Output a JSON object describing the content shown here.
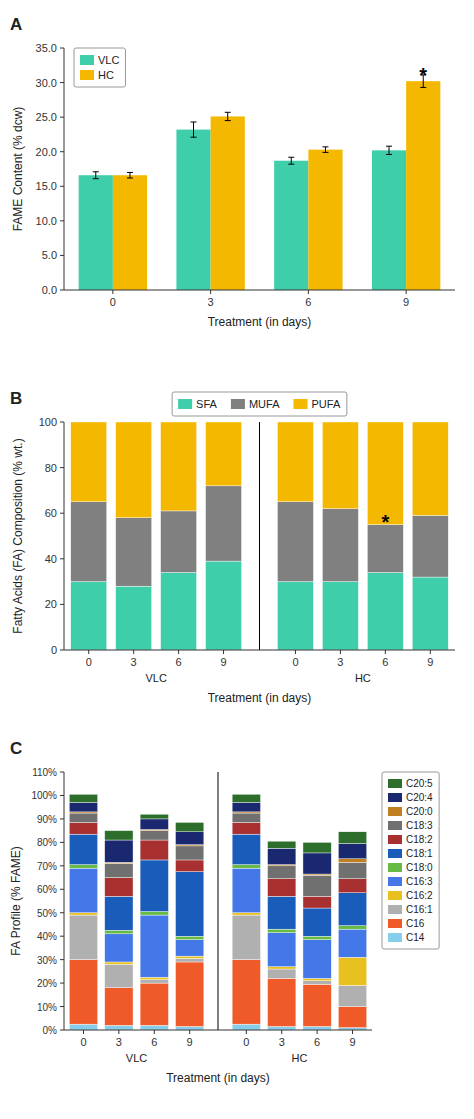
{
  "chart_data": [
    {
      "type": "bar",
      "title": "A",
      "x_label": "Treatment (in days)",
      "y_label": "FAME Content (% dcw)",
      "categories": [
        "0",
        "3",
        "6",
        "9"
      ],
      "series": [
        {
          "name": "VLC",
          "color": "#3ecfaa",
          "values": [
            16.6,
            23.2,
            18.7,
            20.2
          ],
          "errors": [
            0.5,
            1.1,
            0.5,
            0.6
          ]
        },
        {
          "name": "HC",
          "color": "#f5b800",
          "values": [
            16.6,
            25.1,
            20.3,
            30.2
          ],
          "errors": [
            0.4,
            0.6,
            0.4,
            0.9
          ]
        }
      ],
      "ylim": [
        0,
        35.0
      ],
      "yticks": [
        {
          "value": 0.0,
          "label": "0.0"
        },
        {
          "value": 5.0,
          "label": "5.0"
        },
        {
          "value": 10.0,
          "label": "10.0"
        },
        {
          "value": 15.0,
          "label": "15.0"
        },
        {
          "value": 20.0,
          "label": "20.0"
        },
        {
          "value": 25.0,
          "label": "25.0"
        },
        {
          "value": 30.0,
          "label": "30.0"
        },
        {
          "value": 35.0,
          "label": "35.0"
        }
      ],
      "legend": "upper left",
      "grid": false,
      "annotations": [
        {
          "text": "*",
          "series_index": 1,
          "category_index": 3,
          "y": 31.4
        }
      ]
    },
    {
      "type": "bar",
      "title": "B",
      "x_label": "Treatment (in days)",
      "y_label": "Fatty Acids (FA) Composition (% wt.)",
      "categories": [
        "0",
        "3",
        "6",
        "9",
        "0",
        "3",
        "6",
        "9"
      ],
      "groups": [
        {
          "label": "VLC",
          "size": 4
        },
        {
          "label": "HC",
          "size": 4
        }
      ],
      "series": [
        {
          "name": "SFA",
          "color": "#3ecfaa",
          "values": [
            30,
            28,
            34,
            39,
            30,
            30,
            34,
            32
          ]
        },
        {
          "name": "MUFA",
          "color": "#808080",
          "values": [
            35,
            30,
            27,
            33,
            35,
            32,
            21,
            27
          ]
        },
        {
          "name": "PUFA",
          "color": "#f5b800",
          "values": [
            35,
            42,
            39,
            28,
            35,
            38,
            45,
            41
          ]
        }
      ],
      "stacked": true,
      "ylim": [
        0,
        100
      ],
      "yticks": [
        0,
        20,
        40,
        60,
        80,
        100
      ],
      "legend": "top",
      "grid": false,
      "annotations": [
        {
          "text": "*",
          "category_index": 6,
          "y": 57
        }
      ]
    },
    {
      "type": "bar",
      "title": "C",
      "x_label": "Treatment (in days)",
      "y_label": "FA Profile (% FAME)",
      "categories": [
        "0",
        "3",
        "6",
        "9",
        "0",
        "3",
        "6",
        "9"
      ],
      "groups": [
        {
          "label": "VLC",
          "size": 4
        },
        {
          "label": "HC",
          "size": 4
        }
      ],
      "series": [
        {
          "name": "C14",
          "color": "#87ceeb",
          "values": [
            2.5,
            2.0,
            2.0,
            1.5,
            2.5,
            1.5,
            1.5,
            1.0
          ]
        },
        {
          "name": "C16",
          "color": "#f05a28",
          "values": [
            27.5,
            16.0,
            18.0,
            27.5,
            27.5,
            20.5,
            18.0,
            9.0
          ]
        },
        {
          "name": "C16:1",
          "color": "#b0b0b0",
          "values": [
            19.0,
            10.0,
            1.5,
            1.5,
            19.0,
            4.0,
            1.5,
            9.0
          ]
        },
        {
          "name": "C16:2",
          "color": "#e8c020",
          "values": [
            1.0,
            1.0,
            1.0,
            1.0,
            1.0,
            1.0,
            1.0,
            12.0
          ]
        },
        {
          "name": "C16:3",
          "color": "#4477e8",
          "values": [
            19.0,
            12.0,
            26.5,
            7.0,
            19.0,
            14.5,
            16.5,
            12.0
          ]
        },
        {
          "name": "C18:0",
          "color": "#66bb44",
          "values": [
            1.5,
            1.5,
            1.5,
            1.5,
            1.5,
            1.5,
            1.5,
            1.5
          ]
        },
        {
          "name": "C18:1",
          "color": "#1a5cba",
          "values": [
            13.0,
            14.5,
            22.0,
            27.5,
            13.0,
            14.0,
            12.0,
            14.0
          ]
        },
        {
          "name": "C18:2",
          "color": "#a83030",
          "values": [
            5.0,
            8.0,
            8.5,
            5.0,
            5.0,
            7.5,
            5.0,
            6.0
          ]
        },
        {
          "name": "C18:3",
          "color": "#707070",
          "values": [
            4.0,
            6.0,
            4.0,
            6.0,
            4.0,
            5.5,
            9.0,
            7.0
          ]
        },
        {
          "name": "C20:0",
          "color": "#c08020",
          "values": [
            0.5,
            0.5,
            0.5,
            0.5,
            0.5,
            0.5,
            0.5,
            1.5
          ]
        },
        {
          "name": "C20:4",
          "color": "#1a2870",
          "values": [
            4.0,
            9.5,
            4.5,
            5.5,
            4.0,
            7.0,
            9.0,
            6.5
          ]
        },
        {
          "name": "C20:5",
          "color": "#2d6e2d",
          "values": [
            3.5,
            4.0,
            2.0,
            4.0,
            3.5,
            3.0,
            4.5,
            5.0
          ]
        }
      ],
      "stacked": true,
      "ylim": [
        0,
        110
      ],
      "yticks": [
        {
          "value": 0,
          "label": "0%"
        },
        {
          "value": 10,
          "label": "10%"
        },
        {
          "value": 20,
          "label": "20%"
        },
        {
          "value": 30,
          "label": "30%"
        },
        {
          "value": 40,
          "label": "40%"
        },
        {
          "value": 50,
          "label": "50%"
        },
        {
          "value": 60,
          "label": "60%"
        },
        {
          "value": 70,
          "label": "70%"
        },
        {
          "value": 80,
          "label": "80%"
        },
        {
          "value": 90,
          "label": "90%"
        },
        {
          "value": 100,
          "label": "100%"
        },
        {
          "value": 110,
          "label": "110%"
        }
      ],
      "legend": "right",
      "grid": false
    }
  ]
}
